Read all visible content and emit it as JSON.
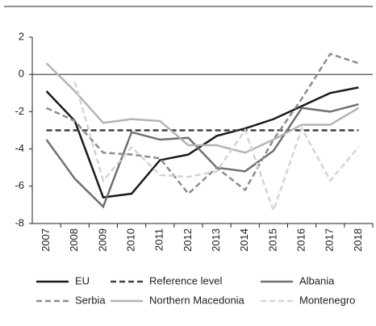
{
  "chart_data": {
    "type": "line",
    "categories": [
      "2007",
      "2008",
      "2009",
      "2010",
      "2011",
      "2012",
      "2013",
      "2014",
      "2015",
      "2016",
      "2017",
      "2018"
    ],
    "series": [
      {
        "name": "EU",
        "color": "#1a1a1a",
        "dash": false,
        "values": [
          -0.9,
          -2.5,
          -6.6,
          -6.4,
          -4.6,
          -4.3,
          -3.3,
          -2.9,
          -2.4,
          -1.7,
          -1.0,
          -0.7
        ]
      },
      {
        "name": "Reference level",
        "color": "#404040",
        "dash": true,
        "values": [
          -3,
          -3,
          -3,
          -3,
          -3,
          -3,
          -3,
          -3,
          -3,
          -3,
          -3,
          -3
        ]
      },
      {
        "name": "Albania",
        "color": "#707070",
        "dash": false,
        "values": [
          -3.5,
          -5.6,
          -7.1,
          -3.1,
          -3.5,
          -3.4,
          -5.0,
          -5.2,
          -4.1,
          -1.8,
          -2.0,
          -1.6
        ]
      },
      {
        "name": "Serbia",
        "color": "#8c8c8c",
        "dash": true,
        "values": [
          -1.8,
          -2.5,
          -4.2,
          -4.3,
          -4.5,
          -6.4,
          -5.0,
          -6.2,
          -3.5,
          -1.3,
          1.1,
          0.6
        ]
      },
      {
        "name": "Northern Macedonia",
        "color": "#b4b4b4",
        "dash": false,
        "values": [
          0.6,
          -0.9,
          -2.6,
          -2.4,
          -2.5,
          -3.8,
          -3.8,
          -4.2,
          -3.5,
          -2.7,
          -2.7,
          -1.8
        ]
      },
      {
        "name": "Montenegro",
        "color": "#d4d4d4",
        "dash": true,
        "values": [
          null,
          -0.4,
          -5.7,
          -3.9,
          -5.4,
          -5.5,
          -5.2,
          -3.0,
          -7.3,
          -2.9,
          -5.7,
          -3.9
        ]
      }
    ],
    "ylim": [
      -8,
      2
    ],
    "yticks": [
      -8,
      -6,
      -4,
      -2,
      0,
      2
    ],
    "zero_line": true,
    "legend": "bottom"
  }
}
